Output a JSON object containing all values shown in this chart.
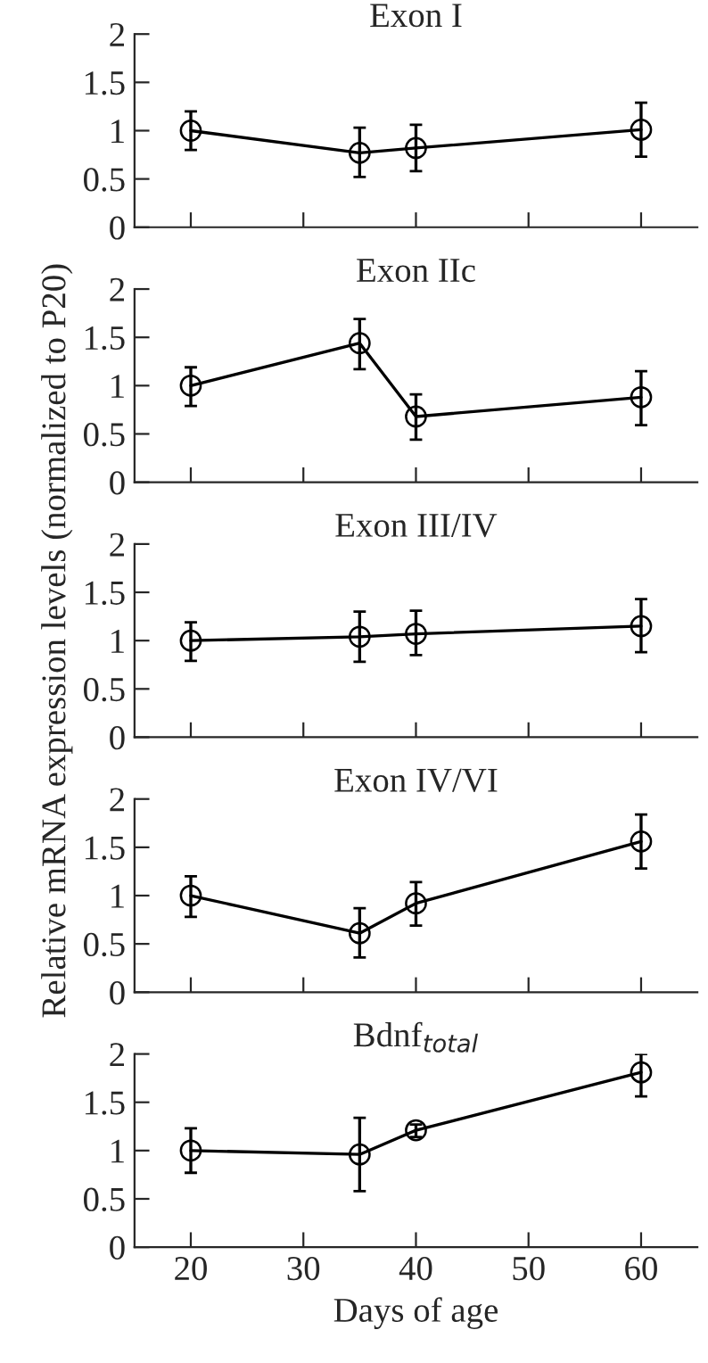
{
  "chart_data": [
    {
      "type": "line",
      "title": "Exon I",
      "x": [
        20,
        35,
        40,
        60
      ],
      "xlim": [
        15,
        65
      ],
      "xticks": [
        {
          "value": 20,
          "label": null
        },
        {
          "value": 30,
          "label": null
        },
        {
          "value": 40,
          "label": null
        },
        {
          "value": 50,
          "label": null
        },
        {
          "value": 60,
          "label": null
        }
      ],
      "ylim": [
        0,
        2
      ],
      "yticks": [
        0,
        0.5,
        1,
        1.5,
        2
      ],
      "tick_labels": "y",
      "marker": "circle",
      "grid": false,
      "series": [
        {
          "color": "#000000",
          "values": [
            1.0,
            0.77,
            0.82,
            1.01
          ],
          "errors": [
            [
              0.8,
              1.2
            ],
            [
              0.52,
              1.03
            ],
            [
              0.58,
              1.06
            ],
            [
              0.73,
              1.29
            ]
          ]
        }
      ]
    },
    {
      "type": "line",
      "title": "Exon IIc",
      "x": [
        20,
        35,
        40,
        60
      ],
      "xlim": [
        15,
        65
      ],
      "xticks": [
        {
          "value": 20,
          "label": null
        },
        {
          "value": 30,
          "label": null
        },
        {
          "value": 40,
          "label": null
        },
        {
          "value": 50,
          "label": null
        },
        {
          "value": 60,
          "label": null
        }
      ],
      "ylim": [
        0,
        2
      ],
      "yticks": [
        0,
        0.5,
        1,
        1.5,
        2
      ],
      "tick_labels": "y",
      "marker": "circle",
      "grid": false,
      "series": [
        {
          "color": "#000000",
          "values": [
            1.0,
            1.44,
            0.68,
            0.88
          ],
          "errors": [
            [
              0.79,
              1.19
            ],
            [
              1.17,
              1.69
            ],
            [
              0.44,
              0.91
            ],
            [
              0.59,
              1.15
            ]
          ]
        }
      ]
    },
    {
      "type": "line",
      "title": "Exon III/IV",
      "ylabel": "Relative mRNA expression levels (normalized to P20)",
      "x": [
        20,
        35,
        40,
        60
      ],
      "xlim": [
        15,
        65
      ],
      "xticks": [
        {
          "value": 20,
          "label": null
        },
        {
          "value": 30,
          "label": null
        },
        {
          "value": 40,
          "label": null
        },
        {
          "value": 50,
          "label": null
        },
        {
          "value": 60,
          "label": null
        }
      ],
      "ylim": [
        0,
        2
      ],
      "yticks": [
        0,
        0.5,
        1,
        1.5,
        2
      ],
      "tick_labels": "y",
      "marker": "circle",
      "grid": false,
      "series": [
        {
          "color": "#000000",
          "values": [
            1.0,
            1.04,
            1.07,
            1.15
          ],
          "errors": [
            [
              0.79,
              1.19
            ],
            [
              0.78,
              1.3
            ],
            [
              0.85,
              1.31
            ],
            [
              0.88,
              1.43
            ]
          ]
        }
      ]
    },
    {
      "type": "line",
      "title": "Exon IV/VI",
      "x": [
        20,
        35,
        40,
        60
      ],
      "xlim": [
        15,
        65
      ],
      "xticks": [
        {
          "value": 20,
          "label": null
        },
        {
          "value": 30,
          "label": null
        },
        {
          "value": 40,
          "label": null
        },
        {
          "value": 50,
          "label": null
        },
        {
          "value": 60,
          "label": null
        }
      ],
      "ylim": [
        0,
        2
      ],
      "yticks": [
        0,
        0.5,
        1,
        1.5,
        2
      ],
      "tick_labels": "y",
      "marker": "circle",
      "grid": false,
      "series": [
        {
          "color": "#000000",
          "values": [
            1.0,
            0.61,
            0.92,
            1.56
          ],
          "errors": [
            [
              0.78,
              1.2
            ],
            [
              0.36,
              0.87
            ],
            [
              0.69,
              1.14
            ],
            [
              1.28,
              1.84
            ]
          ]
        }
      ]
    },
    {
      "type": "line",
      "title": "Bdnf$_{total}$",
      "xlabel": "Days of age",
      "x": [
        20,
        35,
        40,
        60
      ],
      "xlim": [
        15,
        65
      ],
      "xticks": [
        20,
        30,
        40,
        50,
        60
      ],
      "ylim": [
        0,
        2
      ],
      "yticks": [
        0,
        0.5,
        1,
        1.5,
        2
      ],
      "marker": "circle",
      "grid": false,
      "series": [
        {
          "color": "#000000",
          "values": [
            1.0,
            0.96,
            1.21,
            1.81
          ],
          "errors": [
            [
              0.77,
              1.23
            ],
            [
              0.58,
              1.34
            ],
            [
              1.14,
              1.27
            ],
            [
              1.56,
              2.0
            ]
          ]
        }
      ]
    }
  ]
}
